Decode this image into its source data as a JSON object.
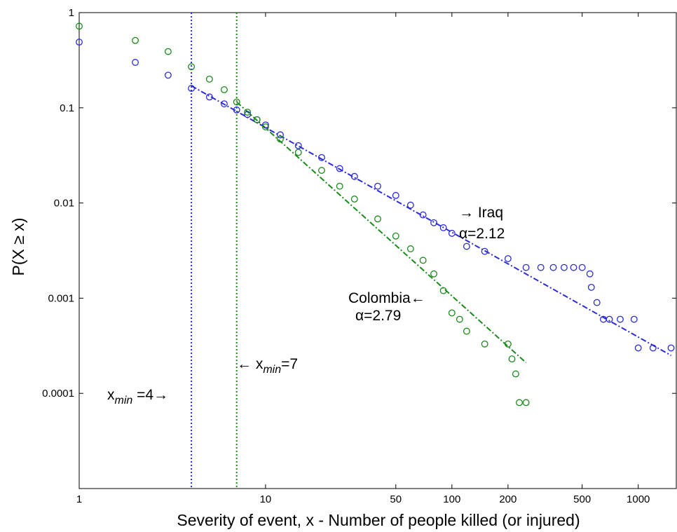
{
  "chart_data": {
    "type": "scatter",
    "x_scale": "log",
    "y_scale": "log",
    "xlabel": "Severity of event, x - Number of people killed (or injured)",
    "ylabel": "P(X ≥ x)",
    "xlim": [
      1,
      1600
    ],
    "ylim": [
      1e-05,
      1
    ],
    "x_ticks": [
      1,
      10,
      50,
      100,
      200,
      500,
      1000
    ],
    "x_tick_labels": [
      "1",
      "10",
      "50",
      "100",
      "200",
      "500",
      "1000"
    ],
    "y_ticks": [
      1,
      0.1,
      0.01,
      0.001,
      0.0001
    ],
    "y_tick_labels": [
      "1",
      "0.1",
      "0.01",
      "0.001",
      "0.0001"
    ],
    "grid": false,
    "series": [
      {
        "key": "iraq",
        "color": "#2b2bd9",
        "marker": "open-circle",
        "x": [
          1,
          2,
          3,
          4,
          5,
          6,
          7,
          8,
          9,
          10,
          12,
          15,
          20,
          25,
          30,
          40,
          50,
          60,
          70,
          80,
          90,
          100,
          120,
          150,
          200,
          250,
          300,
          350,
          400,
          450,
          500,
          550,
          560,
          600,
          650,
          700,
          800,
          950,
          1000,
          1200,
          1500
        ],
        "y": [
          0.49,
          0.3,
          0.22,
          0.16,
          0.13,
          0.11,
          0.095,
          0.085,
          0.075,
          0.066,
          0.052,
          0.04,
          0.03,
          0.023,
          0.019,
          0.015,
          0.012,
          0.0095,
          0.0075,
          0.0062,
          0.0055,
          0.0048,
          0.0035,
          0.0031,
          0.0026,
          0.0021,
          0.0021,
          0.0021,
          0.0021,
          0.0021,
          0.0021,
          0.0018,
          0.0013,
          0.0009,
          0.0006,
          0.0006,
          0.0006,
          0.0006,
          0.0003,
          0.0003,
          0.0003
        ]
      },
      {
        "key": "colombia",
        "color": "#1a8a1a",
        "marker": "open-circle",
        "x": [
          1,
          2,
          3,
          4,
          5,
          6,
          7,
          8,
          9,
          10,
          12,
          15,
          20,
          25,
          30,
          40,
          50,
          60,
          70,
          80,
          90,
          100,
          110,
          120,
          150,
          200,
          210,
          220,
          230,
          250
        ],
        "y": [
          0.72,
          0.51,
          0.39,
          0.27,
          0.2,
          0.155,
          0.115,
          0.09,
          0.075,
          0.063,
          0.047,
          0.034,
          0.022,
          0.015,
          0.011,
          0.0068,
          0.0045,
          0.0033,
          0.0025,
          0.0018,
          0.0012,
          0.0007,
          0.0006,
          0.00045,
          0.00033,
          0.00033,
          0.00023,
          0.00016,
          8e-05,
          8e-05
        ]
      }
    ],
    "fit_lines": [
      {
        "series": "iraq",
        "x": [
          4,
          1500
        ],
        "y": [
          0.17,
          0.00025
        ],
        "style": "dash-dot",
        "color": "#2b2bd9"
      },
      {
        "series": "colombia",
        "x": [
          7,
          250
        ],
        "y": [
          0.115,
          0.00021
        ],
        "style": "dash-dot",
        "color": "#1a8a1a"
      }
    ],
    "vlines": [
      {
        "x": 4,
        "style": "dotted",
        "color": "#2b2bd9"
      },
      {
        "x": 7,
        "style": "dotted",
        "color": "#1a8a1a"
      }
    ],
    "annotations": {
      "iraq_name": "→ Iraq",
      "iraq_alpha": "α=2.12",
      "colombia_name": "Colombia←",
      "colombia_alpha": "α=2.79",
      "xmin_blue_base": "x",
      "xmin_blue_sub": "min",
      "xmin_blue_rest": " =4→",
      "xmin_green_arrow": "← x",
      "xmin_green_sub": "min",
      "xmin_green_rest": "=7"
    }
  }
}
